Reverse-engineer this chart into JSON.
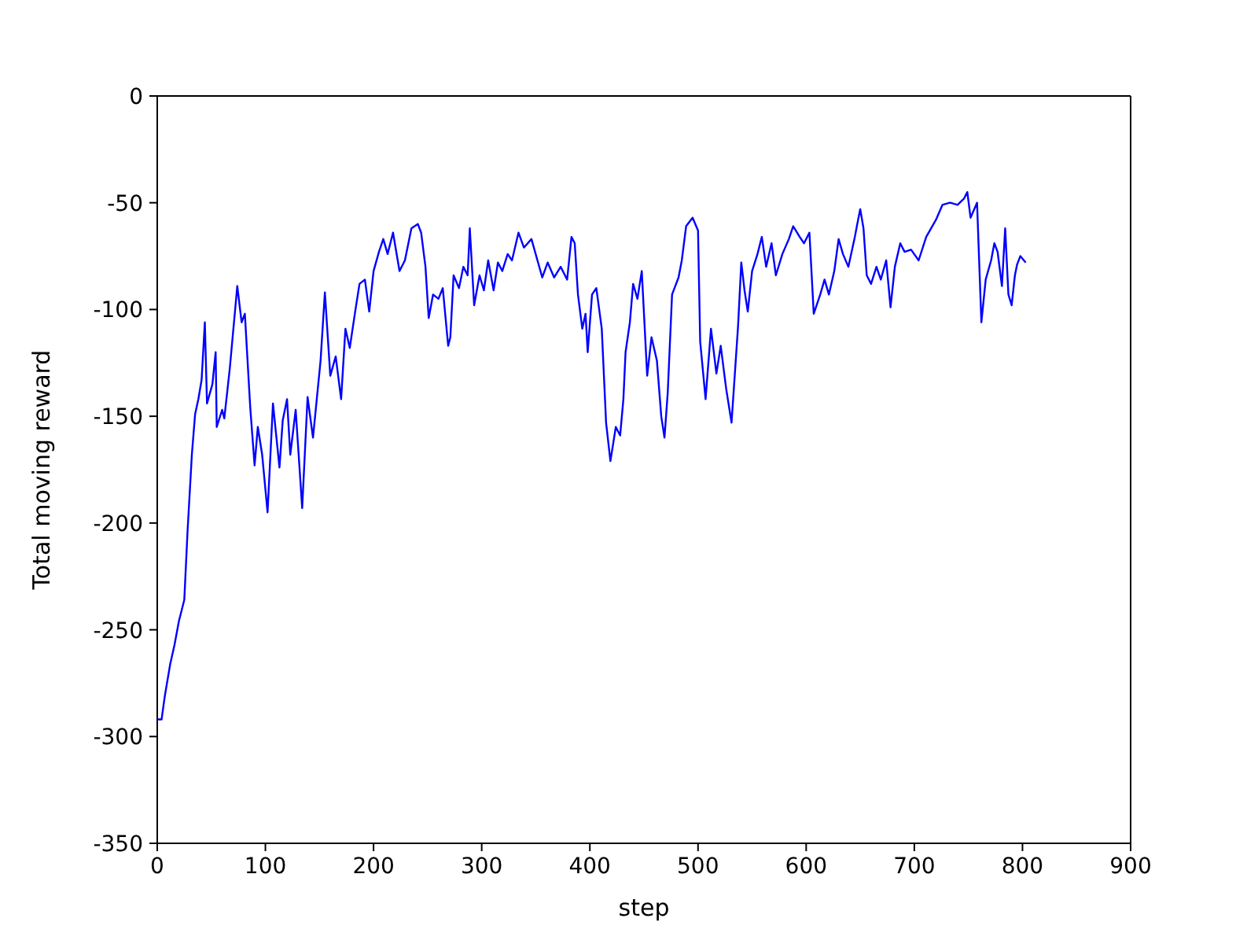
{
  "chart_data": {
    "type": "line",
    "xlabel": "step",
    "ylabel": "Total moving reward",
    "xlim": [
      0,
      900
    ],
    "xticks": [
      0,
      100,
      200,
      300,
      400,
      500,
      600,
      700,
      800,
      900
    ],
    "ylim": [
      -350,
      0
    ],
    "yticks": [
      -350,
      -300,
      -250,
      -200,
      -150,
      -100,
      -50,
      0
    ],
    "grid": false,
    "legend": false,
    "marker": "none",
    "line_style": "solid",
    "x": [
      0,
      4,
      7,
      12,
      16,
      20,
      25,
      28,
      32,
      35,
      38,
      41,
      44,
      46,
      51,
      54,
      55,
      60,
      62,
      67,
      74,
      78,
      81,
      86,
      90,
      93,
      97,
      102,
      107,
      113,
      116,
      120,
      123,
      128,
      134,
      139,
      144,
      151,
      155,
      160,
      165,
      170,
      174,
      178,
      183,
      187,
      192,
      196,
      200,
      205,
      209,
      213,
      218,
      224,
      229,
      235,
      241,
      244,
      248,
      251,
      255,
      260,
      264,
      269,
      271,
      274,
      279,
      283,
      287,
      289,
      293,
      298,
      302,
      306,
      311,
      315,
      319,
      324,
      328,
      334,
      339,
      346,
      356,
      361,
      367,
      373,
      379,
      383,
      386,
      389,
      393,
      396,
      398,
      402,
      406,
      411,
      415,
      419,
      424,
      428,
      431,
      433,
      437,
      440,
      444,
      448,
      453,
      457,
      462,
      466,
      469,
      472,
      476,
      482,
      485,
      489,
      495,
      500,
      502,
      507,
      512,
      517,
      521,
      526,
      531,
      537,
      540,
      543,
      546,
      550,
      555,
      559,
      563,
      568,
      572,
      578,
      584,
      588,
      594,
      598,
      603,
      607,
      613,
      617,
      621,
      626,
      630,
      634,
      639,
      645,
      648,
      650,
      653,
      656,
      660,
      665,
      669,
      674,
      678,
      682,
      687,
      691,
      697,
      704,
      711,
      720,
      726,
      733,
      740,
      746,
      749,
      752,
      758,
      762,
      766,
      771,
      774,
      777,
      781,
      784,
      787,
      790,
      793,
      795,
      798,
      803
    ],
    "series": [
      {
        "color": "#0000ff",
        "values": [
          -292,
          -292,
          -281,
          -266,
          -257,
          -246,
          -236,
          -204,
          -168,
          -149,
          -142,
          -133,
          -106,
          -144,
          -135,
          -120,
          -155,
          -147,
          -151,
          -128,
          -89,
          -106,
          -102,
          -146,
          -173,
          -155,
          -168,
          -195,
          -144,
          -174,
          -152,
          -142,
          -168,
          -147,
          -193,
          -141,
          -160,
          -124,
          -92,
          -131,
          -122,
          -142,
          -109,
          -118,
          -101,
          -88,
          -86,
          -101,
          -82,
          -73,
          -67,
          -74,
          -64,
          -82,
          -77,
          -62,
          -60,
          -64,
          -80,
          -104,
          -93,
          -95,
          -90,
          -117,
          -113,
          -84,
          -90,
          -80,
          -84,
          -62,
          -98,
          -84,
          -91,
          -77,
          -91,
          -78,
          -82,
          -74,
          -77,
          -64,
          -71,
          -67,
          -85,
          -78,
          -85,
          -80,
          -86,
          -66,
          -69,
          -93,
          -109,
          -102,
          -120,
          -93,
          -90,
          -109,
          -153,
          -171,
          -155,
          -159,
          -142,
          -120,
          -106,
          -88,
          -95,
          -82,
          -131,
          -113,
          -124,
          -150,
          -160,
          -139,
          -93,
          -85,
          -77,
          -61,
          -57,
          -63,
          -115,
          -142,
          -109,
          -130,
          -117,
          -137,
          -153,
          -108,
          -78,
          -91,
          -101,
          -82,
          -74,
          -66,
          -80,
          -69,
          -84,
          -74,
          -67,
          -61,
          -66,
          -69,
          -64,
          -102,
          -93,
          -86,
          -93,
          -82,
          -67,
          -74,
          -80,
          -66,
          -58,
          -53,
          -62,
          -84,
          -88,
          -80,
          -86,
          -77,
          -99,
          -80,
          -69,
          -73,
          -72,
          -77,
          -66,
          -58,
          -51,
          -50,
          -51,
          -48,
          -45,
          -57,
          -50,
          -106,
          -86,
          -77,
          -69,
          -73,
          -89,
          -62,
          -93,
          -98,
          -84,
          -79,
          -75,
          -78
        ]
      }
    ]
  }
}
